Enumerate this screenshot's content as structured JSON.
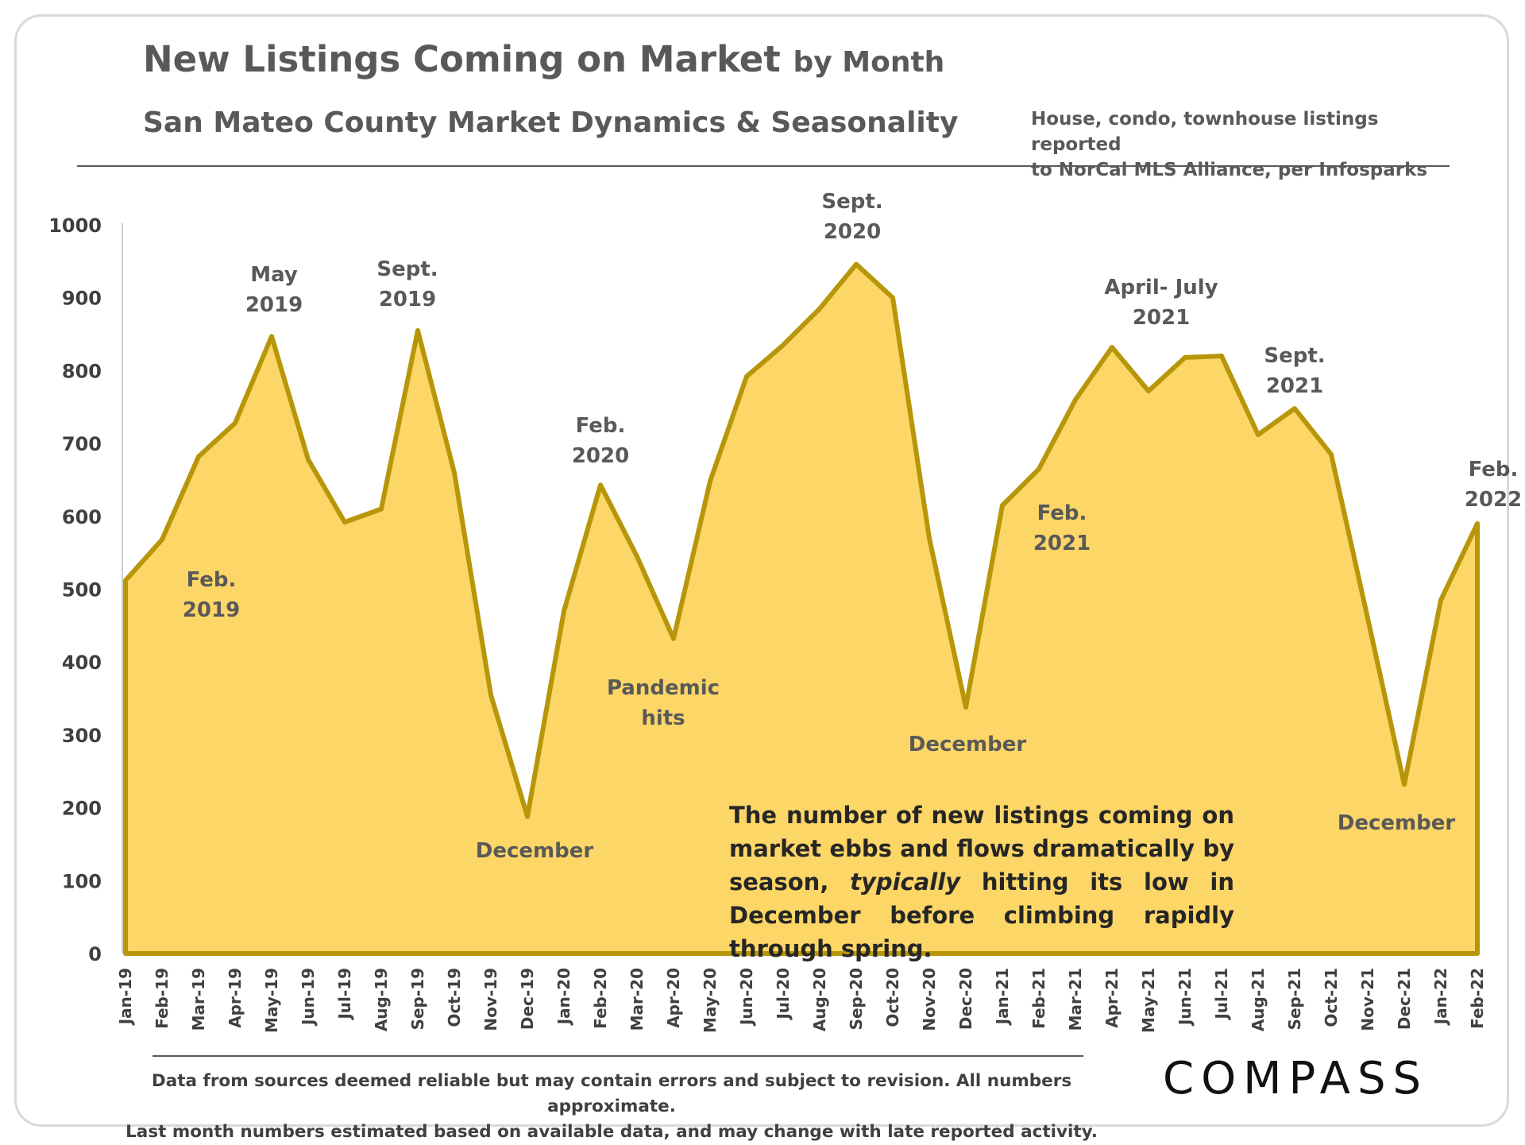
{
  "header": {
    "title_main": "New Listings Coming on Market",
    "title_suffix": "by Month",
    "subtitle": "San Mateo County Market Dynamics & Seasonality",
    "note_line1": "House, condo, townhouse listings reported",
    "note_line2": "to NorCal MLS Alliance, per Infosparks"
  },
  "callout": {
    "part1": "The number of new listings coming on market ebbs and flows dramatically by season, ",
    "emphasis": "typically",
    "part2": " hitting its low in December before climbing rapidly through spring."
  },
  "footer": {
    "line1": "Data from sources deemed reliable but may contain errors and subject to revision. All numbers approximate.",
    "line2": "Last month numbers estimated based on available data, and may change with late reported activity."
  },
  "logo": {
    "text": "COMPASS"
  },
  "colors": {
    "fill": "#FCD666",
    "line": "#B8960A",
    "text": "#595959"
  },
  "chart_data": {
    "type": "area",
    "title": "New Listings Coming on Market by Month",
    "x": [
      "Jan-19",
      "Feb-19",
      "Mar-19",
      "Apr-19",
      "May-19",
      "Jun-19",
      "Jul-19",
      "Aug-19",
      "Sep-19",
      "Oct-19",
      "Nov-19",
      "Dec-19",
      "Jan-20",
      "Feb-20",
      "Mar-20",
      "Apr-20",
      "May-20",
      "Jun-20",
      "Jul-20",
      "Aug-20",
      "Sep-20",
      "Oct-20",
      "Nov-20",
      "Dec-20",
      "Jan-21",
      "Feb-21",
      "Mar-21",
      "Apr-21",
      "May-21",
      "Jun-21",
      "Jul-21",
      "Aug-21",
      "Sep-21",
      "Oct-21",
      "Nov-21",
      "Dec-21",
      "Jan-22",
      "Feb-22"
    ],
    "values": [
      512,
      568,
      682,
      728,
      847,
      678,
      592,
      610,
      855,
      660,
      355,
      188,
      470,
      643,
      545,
      432,
      648,
      792,
      835,
      885,
      946,
      900,
      570,
      338,
      615,
      665,
      760,
      832,
      772,
      818,
      820,
      712,
      748,
      685,
      460,
      232,
      485,
      590
    ],
    "ylim": [
      0,
      1000
    ],
    "yticks": [
      0,
      100,
      200,
      300,
      400,
      500,
      600,
      700,
      800,
      900,
      1000
    ],
    "annotations": [
      {
        "lines": [
          "Feb.",
          "2019"
        ],
        "index": 1
      },
      {
        "lines": [
          "May",
          "2019"
        ],
        "index": 4
      },
      {
        "lines": [
          "Sept.",
          "2019"
        ],
        "index": 8
      },
      {
        "lines": [
          "December"
        ],
        "index": 11
      },
      {
        "lines": [
          "Feb.",
          "2020"
        ],
        "index": 13
      },
      {
        "lines": [
          "Pandemic",
          "hits"
        ],
        "index": 15
      },
      {
        "lines": [
          "Sept.",
          "2020"
        ],
        "index": 20
      },
      {
        "lines": [
          "December"
        ],
        "index": 23
      },
      {
        "lines": [
          "Feb.",
          "2021"
        ],
        "index": 25
      },
      {
        "lines": [
          "April- July",
          "2021"
        ],
        "index": 29
      },
      {
        "lines": [
          "Sept.",
          "2021"
        ],
        "index": 32
      },
      {
        "lines": [
          "December"
        ],
        "index": 35
      },
      {
        "lines": [
          "Feb.",
          "2022"
        ],
        "index": 37
      }
    ]
  }
}
